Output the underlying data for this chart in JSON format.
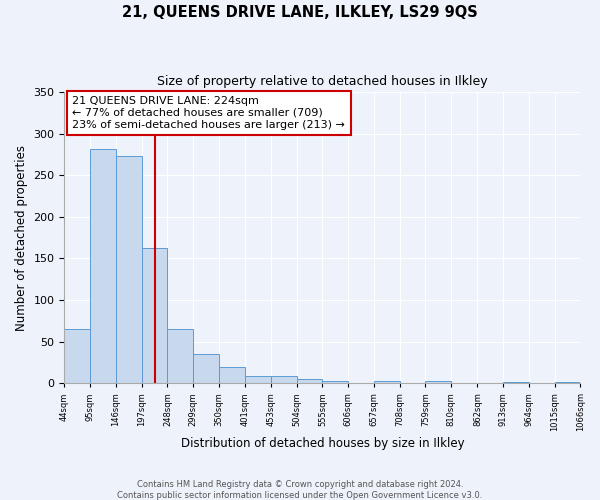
{
  "title": "21, QUEENS DRIVE LANE, ILKLEY, LS29 9QS",
  "subtitle": "Size of property relative to detached houses in Ilkley",
  "xlabel": "Distribution of detached houses by size in Ilkley",
  "ylabel": "Number of detached properties",
  "footnote1": "Contains HM Land Registry data © Crown copyright and database right 2024.",
  "footnote2": "Contains public sector information licensed under the Open Government Licence v3.0.",
  "bar_edges": [
    44,
    95,
    146,
    197,
    248,
    299,
    350,
    401,
    453,
    504,
    555,
    606,
    657,
    708,
    759,
    810,
    862,
    913,
    964,
    1015,
    1066
  ],
  "bar_heights": [
    65,
    281,
    273,
    163,
    65,
    35,
    20,
    9,
    9,
    5,
    3,
    0,
    3,
    0,
    3,
    0,
    0,
    2,
    0,
    2
  ],
  "bar_color": "#c8d9ee",
  "bar_edge_color": "#5b9bd5",
  "vline_x": 224,
  "vline_color": "#cc0000",
  "annotation_title": "21 QUEENS DRIVE LANE: 224sqm",
  "annotation_line1": "← 77% of detached houses are smaller (709)",
  "annotation_line2": "23% of semi-detached houses are larger (213) →",
  "annotation_box_color": "#cc0000",
  "ylim": [
    0,
    350
  ],
  "background_color": "#eef2fa",
  "grid_color": "#ffffff",
  "tick_labels": [
    "44sqm",
    "95sqm",
    "146sqm",
    "197sqm",
    "248sqm",
    "299sqm",
    "350sqm",
    "401sqm",
    "453sqm",
    "504sqm",
    "555sqm",
    "606sqm",
    "657sqm",
    "708sqm",
    "759sqm",
    "810sqm",
    "862sqm",
    "913sqm",
    "964sqm",
    "1015sqm",
    "1066sqm"
  ]
}
